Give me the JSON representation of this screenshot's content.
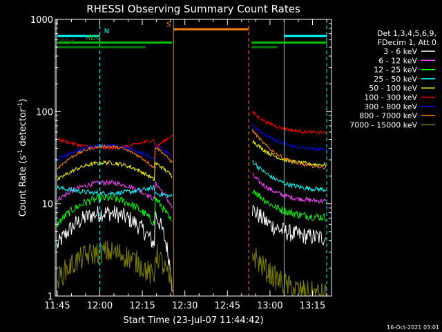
{
  "chart_data": {
    "type": "line",
    "title": "RHESSI Observing Summary Count Rates",
    "xlabel": "Start Time (23-Jul-07 11:44:42)",
    "ylabel_main": "Count Rate (s",
    "ylabel_sup1": "-1",
    "ylabel_mid": " detector",
    "ylabel_sup2": "-1",
    "ylabel_end": ")",
    "yscale": "log",
    "ylim": [
      1,
      1000
    ],
    "xlim_minutes": [
      -0.7,
      96.7
    ],
    "x_ticks": [
      {
        "t": 0,
        "label": "11:45"
      },
      {
        "t": 15,
        "label": "12:00"
      },
      {
        "t": 30,
        "label": "12:15"
      },
      {
        "t": 45,
        "label": "12:30"
      },
      {
        "t": 60,
        "label": "12:45"
      },
      {
        "t": 75,
        "label": "13:00"
      },
      {
        "t": 90,
        "label": "13:15"
      }
    ],
    "y_ticks": [
      {
        "v": 1,
        "label": "1"
      },
      {
        "v": 10,
        "label": "10"
      },
      {
        "v": 100,
        "label": "100"
      },
      {
        "v": 1000,
        "label": "1000"
      }
    ],
    "legend_header": [
      "Det 1,3,4,5,6,9,",
      "FDecim 1, Att 0"
    ],
    "series": [
      {
        "name": "3 - 6 keV",
        "color": "#ffffff",
        "day1": 3.5,
        "day1peak": 8.0,
        "end1": 1.3,
        "day2start": 9.0,
        "day2end": 4.2,
        "noise": 0.22
      },
      {
        "name": "6 - 12 keV",
        "color": "#ff40ff",
        "day1": 11.0,
        "day1peak": 17.0,
        "end1": 9.0,
        "day2start": 21.0,
        "day2end": 10.5,
        "noise": 0.06
      },
      {
        "name": "12 - 25 keV",
        "color": "#00ff00",
        "day1": 6.0,
        "day1peak": 11.5,
        "end1": 6.0,
        "day2start": 15.0,
        "day2end": 7.0,
        "noise": 0.1
      },
      {
        "name": "25 - 50 keV",
        "color": "#00ffff",
        "day1": 15.0,
        "day1peak": 13.0,
        "end1": 12.0,
        "day2start": 30.0,
        "day2end": 14.0,
        "noise": 0.06
      },
      {
        "name": "50 - 100 keV",
        "color": "#ffff00",
        "day1": 18.0,
        "day1peak": 28.0,
        "end1": 20.0,
        "day2start": 50.0,
        "day2end": 26.0,
        "noise": 0.05
      },
      {
        "name": "100 - 300 keV",
        "color": "#ff0000",
        "day1": 50.0,
        "day1peak": 40.0,
        "end1": 55.0,
        "day2start": 100.0,
        "day2end": 58.0,
        "noise": 0.04
      },
      {
        "name": "300 - 800 keV",
        "color": "#0000ff",
        "day1": 30.0,
        "day1peak": 43.0,
        "end1": 33.0,
        "day2start": 75.0,
        "day2end": 38.0,
        "noise": 0.04
      },
      {
        "name": "800 - 7000 keV",
        "color": "#ff8000",
        "day1": 24.0,
        "day1peak": 42.0,
        "end1": 28.0,
        "day2start": 65.0,
        "day2end": 24.0,
        "noise": 0.04
      },
      {
        "name": "7000 - 15000 keV",
        "color": "#808000",
        "day1": 1.5,
        "day1peak": 3.0,
        "end1": 1.2,
        "day2start": 3.0,
        "day2end": 1.0,
        "noise": 0.3
      }
    ],
    "data_gap_minutes": [
      40.5,
      68.5
    ],
    "vlines": [
      {
        "t": -0.3,
        "color": "#00ffff",
        "style": "solid"
      },
      {
        "t": 15.0,
        "color": "#00ffff",
        "style": "dash"
      },
      {
        "t": 41.0,
        "color": "#ff8000",
        "style": "solid"
      },
      {
        "t": 67.5,
        "color": "#ff8000",
        "style": "dash"
      },
      {
        "t": 80.0,
        "color": "#00ffff",
        "style": "solid"
      },
      {
        "t": 95.0,
        "color": "#00ffff",
        "style": "dash"
      }
    ],
    "flag_bars": [
      {
        "label": "N",
        "color": "#00ffff",
        "level": 660,
        "segments": [
          [
            0.0,
            15.0
          ],
          [
            80.0,
            95.0
          ]
        ],
        "label_t": 16.5
      },
      {
        "label": "S",
        "color": "#ff8000",
        "level": 780,
        "segments": [
          [
            41.0,
            67.5
          ]
        ],
        "label_t": 38.5
      },
      {
        "label": "RD0",
        "color": "#00c000",
        "level": 560,
        "segments": [
          [
            0.0,
            40.5
          ],
          [
            68.5,
            95.0
          ]
        ],
        "label_t": 10.0
      },
      {
        "label": "RD4",
        "color": "#008000",
        "level": 500,
        "segments": [
          [
            0.0,
            31.0
          ],
          [
            68.5,
            77.5
          ]
        ],
        "label_t": 1.0
      }
    ],
    "footer_timestamp": "16-Oct-2021 03:01"
  }
}
